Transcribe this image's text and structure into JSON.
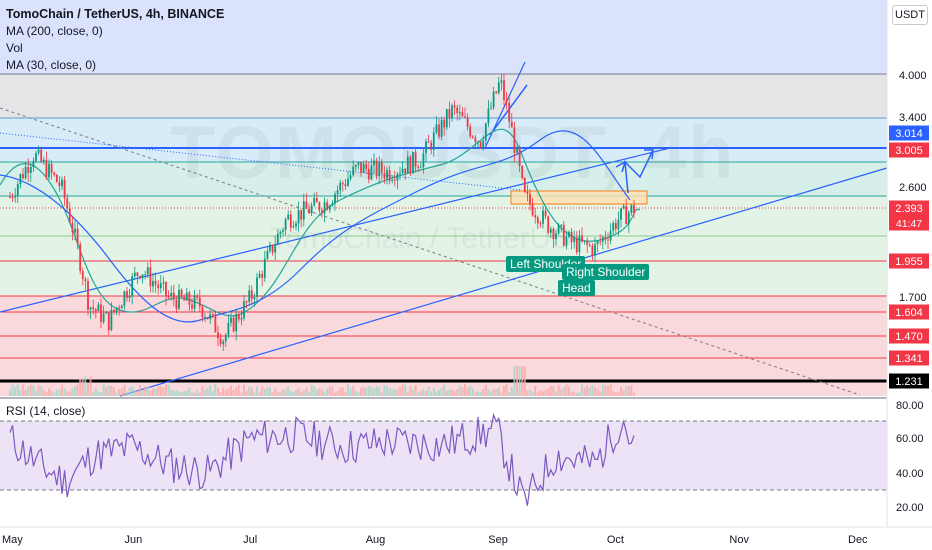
{
  "header": {
    "title": "TomoChain / TetherUS, 4h, BINANCE",
    "indicators": [
      "MA (200, close, 0)",
      "Vol",
      "MA (30, close, 0)"
    ],
    "currency_button": "USDT"
  },
  "watermark": {
    "symbol": "TOMOUSDT, 4h",
    "name": "TomoChain / TetherUS"
  },
  "annotations": {
    "left_shoulder": "Left Shoulder",
    "right_shoulder": "Right Shoulder",
    "head": "Head",
    "countdown": "41:47"
  },
  "rsi": {
    "label": "RSI (14, close)",
    "scale_labels": [
      "80.00",
      "60.00",
      "40.00",
      "20.00"
    ]
  },
  "colors": {
    "candle_up": "#089981",
    "candle_down": "#f23645",
    "ma200": "#2962ff",
    "ma30": "#26a69a",
    "rsi_line": "#7e57c2",
    "badge_red": "#f23645",
    "badge_blue": "#2962ff",
    "badge_black": "#000000"
  },
  "chart_data": {
    "type": "candlestick",
    "symbol": "TomoChain / TetherUS",
    "timeframe": "4h",
    "exchange": "BINANCE",
    "x_tick_labels": [
      "May",
      "Jun",
      "Jul",
      "Aug",
      "Sep",
      "Oct",
      "Nov",
      "Dec"
    ],
    "y_scale": "log",
    "y_tick_labels": [
      "4.000",
      "3.400",
      "3.014",
      "3.005",
      "2.600",
      "2.393",
      "1.955",
      "1.700",
      "1.604",
      "1.470",
      "1.341",
      "1.231"
    ],
    "price_levels": [
      {
        "label": "3.014",
        "value": 3.014,
        "color": "#2962ff"
      },
      {
        "label": "3.005",
        "value": 3.005,
        "color": "#f23645"
      },
      {
        "label": "2.393",
        "value": 2.393,
        "color": "#f23645"
      },
      {
        "label": "1.955",
        "value": 1.955,
        "color": "#f23645"
      },
      {
        "label": "1.604",
        "value": 1.604,
        "color": "#f23645"
      },
      {
        "label": "1.470",
        "value": 1.47,
        "color": "#f23645"
      },
      {
        "label": "1.341",
        "value": 1.341,
        "color": "#f23645"
      },
      {
        "label": "1.231",
        "value": 1.231,
        "color": "#000000"
      }
    ],
    "price_path": [
      {
        "date": "2021-05-01",
        "value": 2.5
      },
      {
        "date": "2021-05-07",
        "value": 2.95
      },
      {
        "date": "2021-05-14",
        "value": 2.6
      },
      {
        "date": "2021-05-21",
        "value": 1.65
      },
      {
        "date": "2021-05-26",
        "value": 1.55
      },
      {
        "date": "2021-06-03",
        "value": 1.9
      },
      {
        "date": "2021-06-10",
        "value": 1.7
      },
      {
        "date": "2021-06-18",
        "value": 1.65
      },
      {
        "date": "2021-06-24",
        "value": 1.45
      },
      {
        "date": "2021-07-01",
        "value": 1.7
      },
      {
        "date": "2021-07-10",
        "value": 2.3
      },
      {
        "date": "2021-07-20",
        "value": 2.45
      },
      {
        "date": "2021-07-28",
        "value": 2.8
      },
      {
        "date": "2021-08-05",
        "value": 2.75
      },
      {
        "date": "2021-08-13",
        "value": 2.9
      },
      {
        "date": "2021-08-21",
        "value": 3.5
      },
      {
        "date": "2021-08-28",
        "value": 3.1
      },
      {
        "date": "2021-09-02",
        "value": 3.9
      },
      {
        "date": "2021-09-08",
        "value": 2.5
      },
      {
        "date": "2021-09-14",
        "value": 2.25
      },
      {
        "date": "2021-09-20",
        "value": 2.1
      },
      {
        "date": "2021-09-26",
        "value": 2.05
      },
      {
        "date": "2021-10-02",
        "value": 2.3
      },
      {
        "date": "2021-10-06",
        "value": 2.393
      }
    ],
    "rsi_path": [
      {
        "date": "2021-05-01",
        "value": 60
      },
      {
        "date": "2021-05-08",
        "value": 45
      },
      {
        "date": "2021-05-15",
        "value": 35
      },
      {
        "date": "2021-05-22",
        "value": 50
      },
      {
        "date": "2021-06-01",
        "value": 55
      },
      {
        "date": "2021-06-10",
        "value": 45
      },
      {
        "date": "2021-06-20",
        "value": 40
      },
      {
        "date": "2021-07-01",
        "value": 60
      },
      {
        "date": "2021-07-12",
        "value": 62
      },
      {
        "date": "2021-07-25",
        "value": 55
      },
      {
        "date": "2021-08-05",
        "value": 58
      },
      {
        "date": "2021-08-18",
        "value": 56
      },
      {
        "date": "2021-09-01",
        "value": 65
      },
      {
        "date": "2021-09-08",
        "value": 22
      },
      {
        "date": "2021-09-16",
        "value": 50
      },
      {
        "date": "2021-09-26",
        "value": 45
      },
      {
        "date": "2021-10-03",
        "value": 72
      },
      {
        "date": "2021-10-06",
        "value": 52
      }
    ],
    "rsi_range": [
      20,
      80
    ]
  }
}
